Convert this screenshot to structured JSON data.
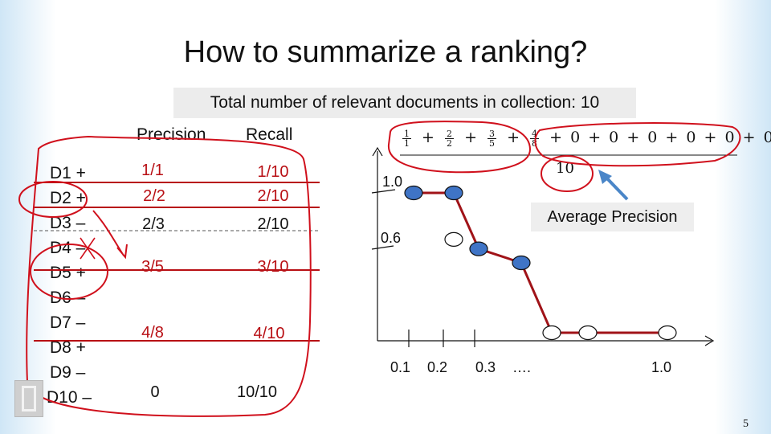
{
  "title": "How to summarize a ranking?",
  "banner": "Total  number of relevant documents in collection:  10",
  "table": {
    "headers": {
      "precision": "Precision",
      "recall": "Recall"
    },
    "documents": [
      "D1 +",
      "D2 +",
      "D3 –",
      "D4 –",
      "D5 +",
      "D6 –",
      "D7 –",
      "D8 +",
      "D9 –",
      "D10 –"
    ],
    "values": [
      {
        "precision": "1/1",
        "recall": "1/10"
      },
      {
        "precision": "2/2",
        "recall": "2/10"
      },
      {
        "precision": "2/3",
        "recall": "2/10"
      },
      {
        "precision": "3/5",
        "recall": "3/10"
      },
      {
        "precision": "4/8",
        "recall": "4/10"
      },
      {
        "precision": "0",
        "recall": "10/10"
      }
    ]
  },
  "formula": {
    "fractions": [
      {
        "num": "1",
        "den": "1"
      },
      {
        "num": "2",
        "den": "2"
      },
      {
        "num": "3",
        "den": "5"
      },
      {
        "num": "4",
        "den": "8"
      }
    ],
    "plus": "+",
    "zeros": [
      "0",
      "0",
      "0",
      "0",
      "0",
      "0"
    ],
    "denominator": "10"
  },
  "average_precision_label": "Average Precision",
  "chart_data": {
    "type": "line",
    "x_tick_labels": [
      "0.1",
      "0.2",
      "0.3",
      "….",
      "1.0"
    ],
    "y_tick_labels": [
      "1.0",
      "0.6"
    ],
    "points": [
      {
        "x": 0.1,
        "y": 1.0,
        "relevant": true
      },
      {
        "x": 0.2,
        "y": 1.0,
        "relevant": true
      },
      {
        "x": 0.2,
        "y": 0.667,
        "relevant": false
      },
      {
        "x": 0.3,
        "y": 0.6,
        "relevant": true
      },
      {
        "x": 0.4,
        "y": 0.5,
        "relevant": true
      },
      {
        "x": 0.5,
        "y": 0.0,
        "relevant": false
      },
      {
        "x": 0.6,
        "y": 0.0,
        "relevant": false
      },
      {
        "x": 1.0,
        "y": 0.0,
        "relevant": false
      }
    ],
    "line": [
      [
        0.1,
        1.0
      ],
      [
        0.2,
        1.0
      ],
      [
        0.3,
        0.6
      ],
      [
        0.4,
        0.5
      ],
      [
        0.5,
        0.0
      ],
      [
        1.0,
        0.0
      ]
    ],
    "colors": {
      "relevant_fill": "#3f74c6",
      "line": "#a01318",
      "annotation": "#d0101c",
      "arrow": "#4a86c8"
    }
  },
  "page_number": "5"
}
